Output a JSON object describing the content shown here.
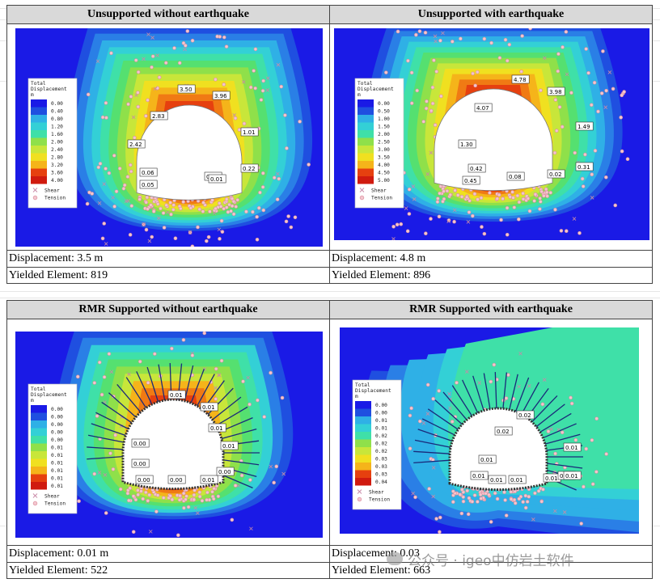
{
  "legend": {
    "title_lines": [
      "Total",
      "Displacement",
      "m"
    ],
    "shear_label": "Shear",
    "tension_label": "Tension"
  },
  "panels": [
    {
      "title": "Unsupported without earthquake",
      "displacement": "Displacement: 3.5 m",
      "yielded": "Yielded Element: 819",
      "legend_values": [
        "0.00",
        "0.40",
        "0.80",
        "1.20",
        "1.60",
        "2.00",
        "2.40",
        "2.80",
        "3.20",
        "3.60",
        "4.00"
      ],
      "labels": [
        "3.50",
        "3.96",
        "2.83",
        "2.42",
        "1.01",
        "0.22",
        "0.06",
        "0.05",
        "0.01",
        "0.01"
      ]
    },
    {
      "title": "Unsupported with earthquake",
      "displacement": "Displacement: 4.8 m",
      "yielded": "Yielded Element: 896",
      "legend_values": [
        "0.00",
        "0.50",
        "1.00",
        "1.50",
        "2.00",
        "2.50",
        "3.00",
        "3.50",
        "4.00",
        "4.50",
        "5.00"
      ],
      "labels": [
        "4.78",
        "3.98",
        "4.07",
        "1.49",
        "1.30",
        "0.42",
        "0.45",
        "0.08",
        "0.02",
        "0.31"
      ]
    },
    {
      "title": "RMR Supported without earthquake",
      "displacement": "Displacement: 0.01 m",
      "yielded": "Yielded Element: 522",
      "legend_values": [
        "0.00",
        "0.00",
        "0.00",
        "0.00",
        "0.00",
        "0.01",
        "0.01",
        "0.01",
        "0.01",
        "0.01",
        "0.01"
      ],
      "labels": [
        "0.01",
        "0.01",
        "0.01",
        "0.00",
        "0.01",
        "0.00",
        "0.00",
        "0.00",
        "0.01",
        "0.00"
      ]
    },
    {
      "title": "RMR Supported with earthquake",
      "displacement": "Displacement: 0.03",
      "yielded": "Yielded Element: 663",
      "legend_values": [
        "0.00",
        "0.00",
        "0.01",
        "0.01",
        "0.02",
        "0.02",
        "0.02",
        "0.03",
        "0.03",
        "0.03",
        "0.04"
      ],
      "labels": [
        "0.02",
        "0.02",
        "0.01",
        "0.01",
        "0.01",
        "0.01",
        "0.01",
        "0.01",
        "0.01",
        "0.01"
      ]
    }
  ],
  "watermark": "公众号 · igeo中仿岩土软件",
  "colors": {
    "scale": [
      "#1a1ae6",
      "#1f4fe0",
      "#2a7fe6",
      "#2fb0e6",
      "#33d0d6",
      "#3fe0a8",
      "#55e070",
      "#8fe04a",
      "#c8e63a",
      "#f0e020",
      "#f5b41a",
      "#f07a14",
      "#e6400f",
      "#d01a0f"
    ],
    "header_bg": "#d9d9d9"
  }
}
